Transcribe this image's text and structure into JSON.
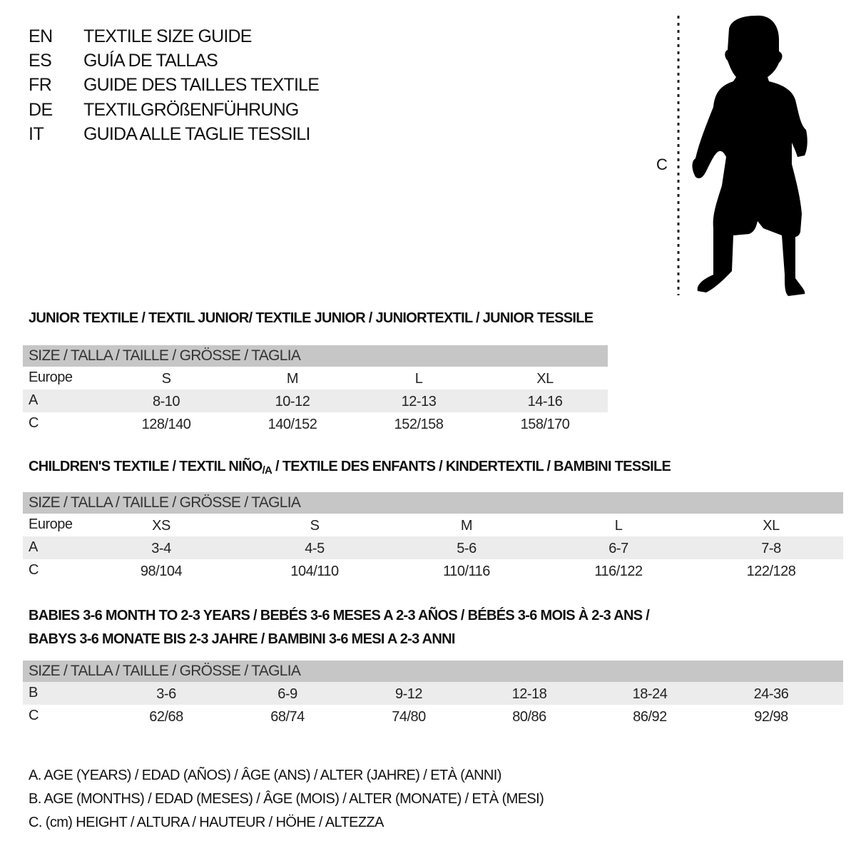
{
  "languages": [
    {
      "code": "EN",
      "title": "TEXTILE SIZE GUIDE"
    },
    {
      "code": "ES",
      "title": "GUÍA DE TALLAS"
    },
    {
      "code": "FR",
      "title": "GUIDE DES TAILLES TEXTILE"
    },
    {
      "code": "DE",
      "title": "TEXTILGRÖßENFÜHRUNG"
    },
    {
      "code": "IT",
      "title": "GUIDA ALLE TAGLIE TESSILI"
    }
  ],
  "figure": {
    "measure_label": "C",
    "icon": "child-silhouette"
  },
  "header_label": "SIZE / TALLA / TAILLE / GRÖSSE / TAGLIA",
  "colors": {
    "header_bg": "#c6c6c6",
    "shaded_row": "#ececec"
  },
  "junior": {
    "title": "JUNIOR TEXTILE / TEXTIL JUNIOR/ TEXTILE JUNIOR / JUNIORTEXTIL / JUNIOR TESSILE",
    "rows": [
      {
        "label": "Europe",
        "cells": [
          "S",
          "M",
          "L",
          "XL"
        ]
      },
      {
        "label": "A",
        "cells": [
          "8-10",
          "10-12",
          "12-13",
          "14-16"
        ]
      },
      {
        "label": "C",
        "cells": [
          "128/140",
          "140/152",
          "152/158",
          "158/170"
        ]
      }
    ]
  },
  "children": {
    "title_pre": "CHILDREN'S TEXTILE / TEXTIL NIÑO",
    "title_sub": "/A",
    "title_post": " / TEXTILE DES ENFANTS / KINDERTEXTIL / BAMBINI TESSILE",
    "rows": [
      {
        "label": "Europe",
        "cells": [
          "XS",
          "S",
          "M",
          "L",
          "XL"
        ]
      },
      {
        "label": "A",
        "cells": [
          "3-4",
          "4-5",
          "5-6",
          "6-7",
          "7-8"
        ]
      },
      {
        "label": "C",
        "cells": [
          "98/104",
          "104/110",
          "110/116",
          "116/122",
          "122/128"
        ]
      }
    ]
  },
  "babies": {
    "title_line1": "BABIES 3-6 MONTH TO 2-3 YEARS / BEBÉS 3-6 MESES A 2-3 AÑOS / BÉBÉS 3-6 MOIS À 2-3 ANS /",
    "title_line2": "BABYS 3-6 MONATE BIS 2-3 JAHRE / BAMBINI 3-6 MESI A 2-3 ANNI",
    "rows": [
      {
        "label": "B",
        "cells": [
          "3-6",
          "6-9",
          "9-12",
          "12-18",
          "18-24",
          "24-36"
        ]
      },
      {
        "label": "C",
        "cells": [
          "62/68",
          "68/74",
          "74/80",
          "80/86",
          "86/92",
          "92/98"
        ]
      }
    ]
  },
  "legend": [
    "A. AGE (YEARS) / EDAD (AÑOS) / ÂGE (ANS) / ALTER (JAHRE) / ETÀ (ANNI)",
    "B. AGE (MONTHS) / EDAD (MESES) / ÂGE (MOIS) / ALTER (MONATE) / ETÀ (MESI)",
    "C. (cm) HEIGHT / ALTURA / HAUTEUR / HÖHE / ALTEZZA"
  ]
}
